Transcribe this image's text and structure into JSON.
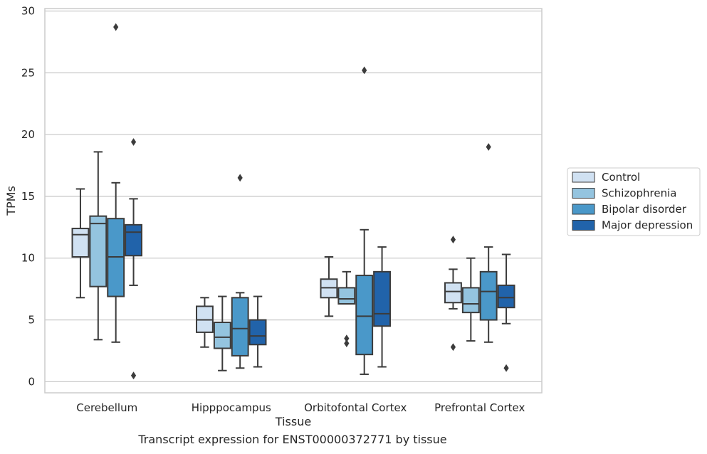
{
  "caption": "Transcript expression for ENST00000372771 by tissue",
  "chart_data": {
    "type": "box",
    "xlabel": "Tissue",
    "ylabel": "TPMs",
    "ylim": [
      -0.9,
      30.2
    ],
    "yticks": [
      0,
      5,
      10,
      15,
      20,
      25,
      30
    ],
    "grid": "horizontal",
    "legend_position": "right",
    "categories": [
      "Cerebellum",
      "Hipppocampus",
      "Orbitofontal Cortex",
      "Prefrontal Cortex"
    ],
    "series": [
      {
        "name": "Control",
        "color": "#d0e1f2",
        "boxes": [
          {
            "whisker_low": 6.8,
            "q1": 10.1,
            "median": 11.9,
            "q3": 12.4,
            "whisker_high": 15.6,
            "outliers": []
          },
          {
            "whisker_low": 2.8,
            "q1": 4.0,
            "median": 5.0,
            "q3": 6.1,
            "whisker_high": 6.8,
            "outliers": []
          },
          {
            "whisker_low": 5.3,
            "q1": 6.8,
            "median": 7.6,
            "q3": 8.3,
            "whisker_high": 10.1,
            "outliers": []
          },
          {
            "whisker_low": 5.9,
            "q1": 6.4,
            "median": 7.3,
            "q3": 8.0,
            "whisker_high": 9.1,
            "outliers": [
              11.5,
              2.8
            ]
          }
        ]
      },
      {
        "name": "Schizophrenia",
        "color": "#94c4df",
        "boxes": [
          {
            "whisker_low": 3.4,
            "q1": 7.7,
            "median": 12.8,
            "q3": 13.4,
            "whisker_high": 18.6,
            "outliers": []
          },
          {
            "whisker_low": 0.9,
            "q1": 2.7,
            "median": 3.6,
            "q3": 4.8,
            "whisker_high": 6.9,
            "outliers": []
          },
          {
            "whisker_low": 6.3,
            "q1": 6.3,
            "median": 6.7,
            "q3": 7.6,
            "whisker_high": 8.9,
            "outliers": [
              3.5,
              3.1
            ]
          },
          {
            "whisker_low": 3.3,
            "q1": 5.6,
            "median": 6.3,
            "q3": 7.6,
            "whisker_high": 10.0,
            "outliers": []
          }
        ]
      },
      {
        "name": "Bipolar disorder",
        "color": "#4a98c9",
        "boxes": [
          {
            "whisker_low": 3.2,
            "q1": 6.9,
            "median": 10.1,
            "q3": 13.2,
            "whisker_high": 16.1,
            "outliers": [
              28.7
            ]
          },
          {
            "whisker_low": 1.1,
            "q1": 2.1,
            "median": 4.3,
            "q3": 6.8,
            "whisker_high": 7.2,
            "outliers": [
              16.5
            ]
          },
          {
            "whisker_low": 0.6,
            "q1": 2.2,
            "median": 5.3,
            "q3": 8.6,
            "whisker_high": 12.3,
            "outliers": [
              25.2
            ]
          },
          {
            "whisker_low": 3.2,
            "q1": 5.0,
            "median": 7.3,
            "q3": 8.9,
            "whisker_high": 10.9,
            "outliers": [
              19.0
            ]
          }
        ]
      },
      {
        "name": "Major depression",
        "color": "#2163aa",
        "boxes": [
          {
            "whisker_low": 7.8,
            "q1": 10.2,
            "median": 12.1,
            "q3": 12.7,
            "whisker_high": 14.8,
            "outliers": [
              19.4,
              0.5
            ]
          },
          {
            "whisker_low": 1.2,
            "q1": 3.0,
            "median": 3.7,
            "q3": 5.0,
            "whisker_high": 6.9,
            "outliers": []
          },
          {
            "whisker_low": 1.2,
            "q1": 4.5,
            "median": 5.5,
            "q3": 8.9,
            "whisker_high": 10.9,
            "outliers": []
          },
          {
            "whisker_low": 4.7,
            "q1": 6.0,
            "median": 6.8,
            "q3": 7.8,
            "whisker_high": 10.3,
            "outliers": [
              1.1
            ]
          }
        ]
      }
    ]
  }
}
